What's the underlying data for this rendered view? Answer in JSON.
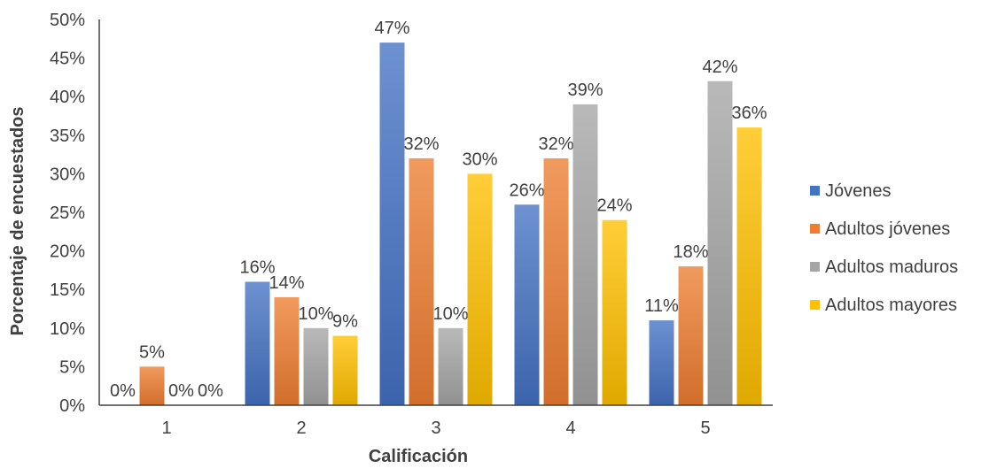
{
  "chart_data": {
    "type": "bar",
    "title": "",
    "xlabel": "Calificación",
    "ylabel": "Porcentaje de encuestados",
    "categories": [
      "1",
      "2",
      "3",
      "4",
      "5"
    ],
    "ylim": [
      0,
      50
    ],
    "yticks": [
      0,
      5,
      10,
      15,
      20,
      25,
      30,
      35,
      40,
      45,
      50
    ],
    "ytick_labels": [
      "0%",
      "5%",
      "10%",
      "15%",
      "20%",
      "25%",
      "30%",
      "35%",
      "40%",
      "45%",
      "50%"
    ],
    "grid": false,
    "legend_position": "right",
    "series": [
      {
        "name": "Jóvenes",
        "color": "#4472C4",
        "values": [
          0,
          16,
          47,
          26,
          11
        ],
        "labels": [
          "0%",
          "16%",
          "47%",
          "26%",
          "11%"
        ]
      },
      {
        "name": "Adultos jóvenes",
        "color": "#ED7D31",
        "values": [
          5,
          14,
          32,
          32,
          18
        ],
        "labels": [
          "5%",
          "14%",
          "32%",
          "32%",
          "18%"
        ]
      },
      {
        "name": "Adultos maduros",
        "color": "#A5A5A5",
        "values": [
          0,
          10,
          10,
          39,
          42
        ],
        "labels": [
          "0%",
          "10%",
          "10%",
          "39%",
          "42%"
        ]
      },
      {
        "name": "Adultos mayores",
        "color": "#FFC000",
        "values": [
          0,
          9,
          30,
          24,
          36
        ],
        "labels": [
          "0%",
          "9%",
          "30%",
          "24%",
          "36%"
        ]
      }
    ]
  }
}
